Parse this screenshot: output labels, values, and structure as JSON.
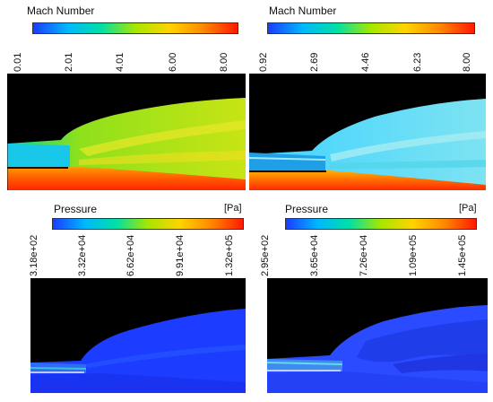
{
  "panels": [
    {
      "id": "mach-left",
      "title": "Mach Number",
      "unit": "",
      "ticks": [
        "0.01",
        "2.01",
        "4.01",
        "6.00",
        "8.00"
      ],
      "colormap": [
        "#1b3cff",
        "#00b7ff",
        "#00e0a6",
        "#a8e600",
        "#ffd400",
        "#ff8800",
        "#ff1a00"
      ]
    },
    {
      "id": "mach-right",
      "title": "Mach Number",
      "unit": "",
      "ticks": [
        "0.92",
        "2.69",
        "4.46",
        "6.23",
        "8.00"
      ],
      "colormap": [
        "#1b3cff",
        "#00b7ff",
        "#00e0a6",
        "#a8e600",
        "#ffd400",
        "#ff8800",
        "#ff1a00"
      ]
    },
    {
      "id": "pressure-left",
      "title": "Pressure",
      "unit": "[Pa]",
      "ticks": [
        "3.18e+02",
        "3.32e+04",
        "6.62e+04",
        "9.91e+04",
        "1.32e+05"
      ],
      "colormap": [
        "#1b3cff",
        "#00b7ff",
        "#00e0a6",
        "#a8e600",
        "#ffd400",
        "#ff8800",
        "#ff1a00"
      ]
    },
    {
      "id": "pressure-right",
      "title": "Pressure",
      "unit": "[Pa]",
      "ticks": [
        "2.95e+02",
        "3.65e+04",
        "7.26e+04",
        "1.09e+05",
        "1.45e+05"
      ],
      "colormap": [
        "#1b3cff",
        "#00b7ff",
        "#00e0a6",
        "#a8e600",
        "#ffd400",
        "#ff8800",
        "#ff1a00"
      ]
    }
  ]
}
